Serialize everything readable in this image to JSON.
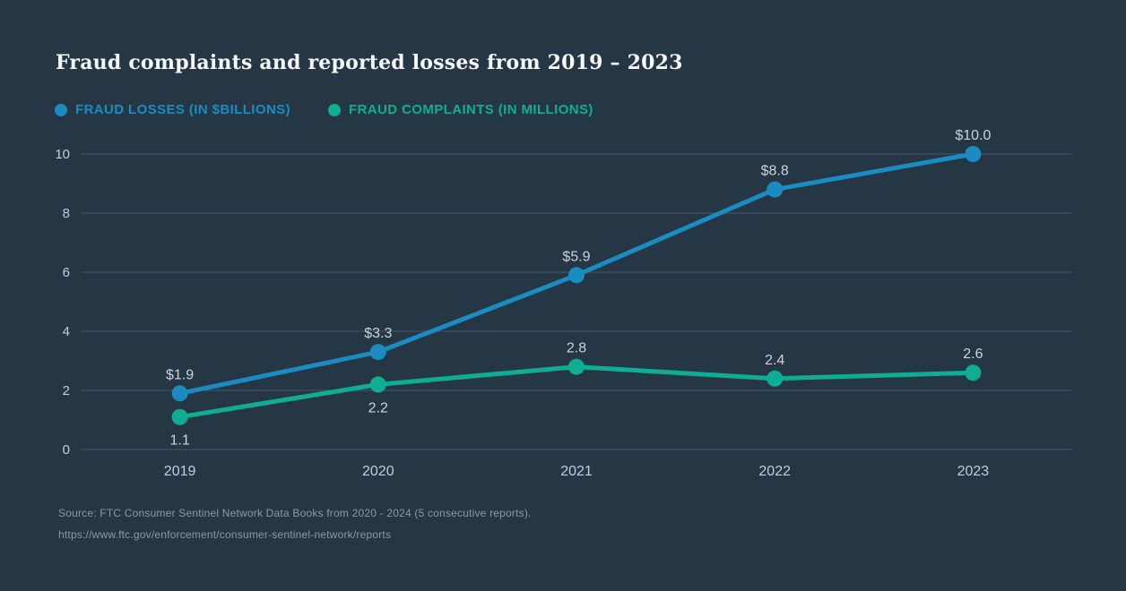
{
  "title": "Fraud complaints and reported losses from 2019 – 2023",
  "colors": {
    "background": "#253745",
    "gridline": "#44566a",
    "losses": "#1a8cc2",
    "complaints": "#0fae94",
    "tick_text": "#c5cdd4",
    "point_label_text": "#ccd3d9",
    "title_text": "#f6f8f9",
    "source_text": "#8b99a6"
  },
  "legend": {
    "items": [
      {
        "label": "FRAUD LOSSES (IN $BILLIONS)",
        "color": "#1a8cc2"
      },
      {
        "label": "FRAUD COMPLAINTS (IN MILLIONS)",
        "color": "#0fae94"
      }
    ]
  },
  "chart_data": {
    "type": "line",
    "title": "Fraud complaints and reported losses from 2019 – 2023",
    "categories": [
      "2019",
      "2020",
      "2021",
      "2022",
      "2023"
    ],
    "series": [
      {
        "name": "FRAUD LOSSES (IN $BILLIONS)",
        "color": "#1a8cc2",
        "values": [
          1.9,
          3.3,
          5.9,
          8.8,
          10.0
        ],
        "labels": [
          "$1.9",
          "$3.3",
          "$5.9",
          "$8.8",
          "$10.0"
        ],
        "label_positions": [
          "above",
          "above",
          "above",
          "above",
          "above"
        ]
      },
      {
        "name": "FRAUD COMPLAINTS (IN MILLIONS)",
        "color": "#0fae94",
        "values": [
          1.1,
          2.2,
          2.8,
          2.4,
          2.6
        ],
        "labels": [
          "1.1",
          "2.2",
          "2.8",
          "2.4",
          "2.6"
        ],
        "label_positions": [
          "below",
          "below",
          "above",
          "above",
          "above"
        ]
      }
    ],
    "xlabel": "",
    "ylabel": "",
    "ylim": [
      0,
      10
    ],
    "yticks": [
      0,
      2,
      4,
      6,
      8,
      10
    ],
    "grid": true,
    "legend_position": "top-left"
  },
  "source": {
    "line1": "Source: FTC Consumer Sentinel Network Data Books from 2020 - 2024 (5 consecutive reports).",
    "line2": "https://www.ftc.gov/enforcement/consumer-sentinel-network/reports"
  }
}
